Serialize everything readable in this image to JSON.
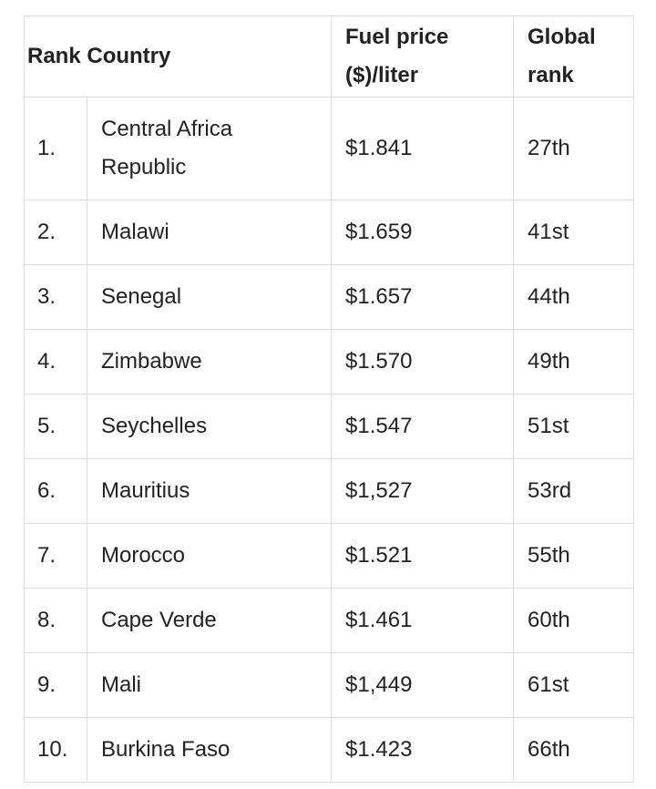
{
  "table": {
    "header": [
      "Rank",
      "Country",
      "Fuel price ($)/liter",
      "Global rank"
    ],
    "rows": [
      [
        "1.",
        "Central Africa Republic",
        "$1.841",
        "27th"
      ],
      [
        "2.",
        "Malawi",
        "$1.659",
        "41st"
      ],
      [
        "3.",
        "Senegal",
        "$1.657",
        "44th"
      ],
      [
        "4.",
        "Zimbabwe",
        "$1.570",
        "49th"
      ],
      [
        "5.",
        "Seychelles",
        "$1.547",
        "51st"
      ],
      [
        "6.",
        "Mauritius",
        "$1,527",
        "53rd"
      ],
      [
        "7.",
        "Morocco",
        "$1.521",
        "55th"
      ],
      [
        "8.",
        "Cape Verde",
        "$1.461",
        "60th"
      ],
      [
        "9.",
        "Mali",
        "$1,449",
        "61st"
      ],
      [
        "10.",
        "Burkina Faso",
        "$1.423",
        "66th"
      ]
    ]
  }
}
